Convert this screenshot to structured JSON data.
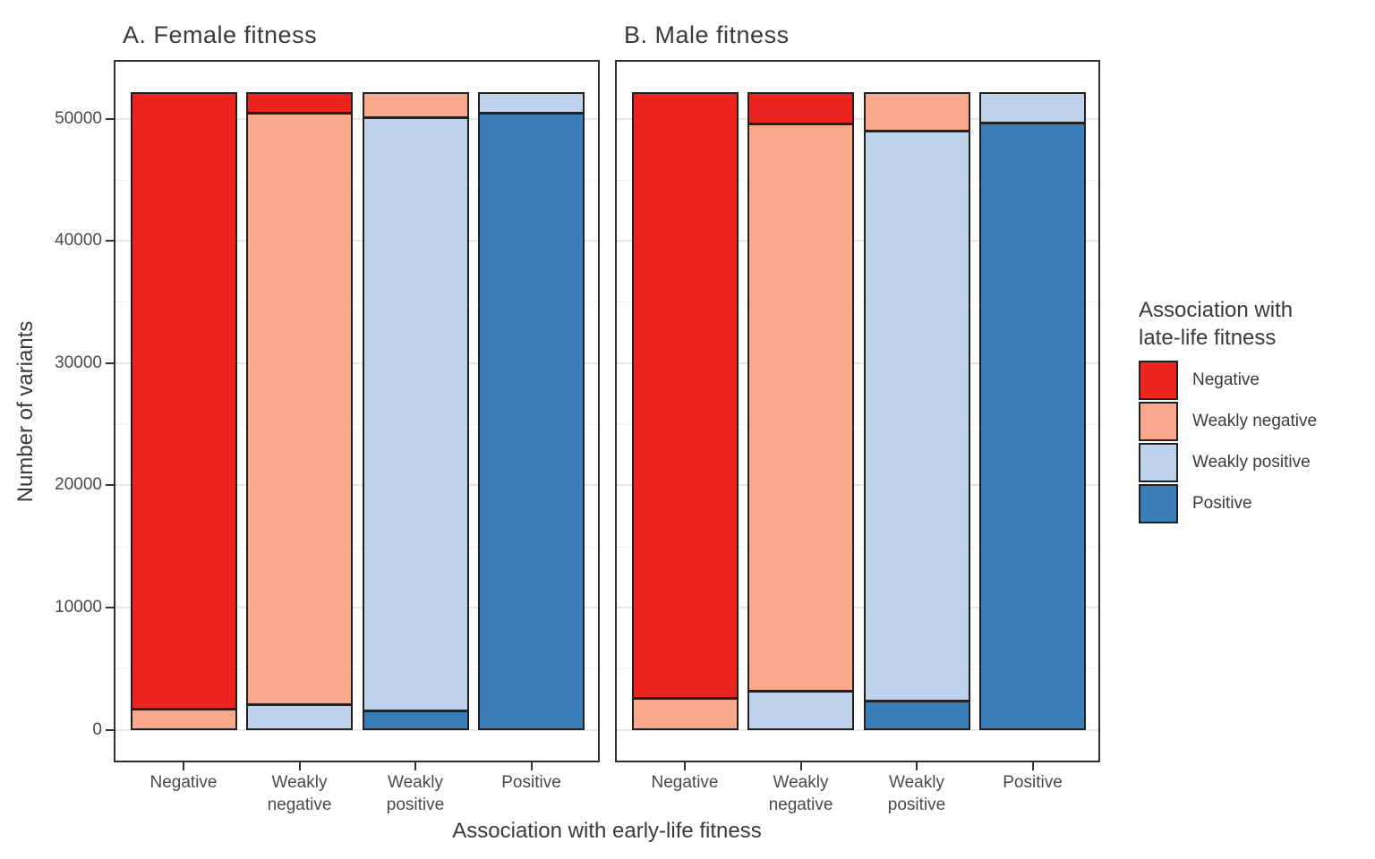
{
  "figure": {
    "y_axis_title": "Number of variants",
    "x_axis_title": "Association with early-life fitness"
  },
  "legend": {
    "title_line1": "Association with",
    "title_line2": "late-life fitness",
    "items": [
      {
        "label": "Negative",
        "color": "#EB2420"
      },
      {
        "label": "Weakly negative",
        "color": "#F9A98B"
      },
      {
        "label": "Weakly positive",
        "color": "#BED3EB"
      },
      {
        "label": "Positive",
        "color": "#3A7DB9"
      }
    ]
  },
  "colors": {
    "negative": "#EB2420",
    "weakly_negative": "#F9A98B",
    "weakly_positive": "#BED3EB",
    "positive": "#3A7DB9",
    "bar_outline": "#212121",
    "panel_border": "#2F2F2F",
    "grid_major": "#E7E7E7",
    "grid_minor": "#F2F2F2",
    "text": "#3A3A3A"
  },
  "chart_data": {
    "type": "bar",
    "stacked": true,
    "stack_order_top_to_bottom": [
      "Negative",
      "Weakly negative",
      "Weakly positive",
      "Positive"
    ],
    "categories": [
      "Negative",
      "Weakly negative",
      "Weakly positive",
      "Positive"
    ],
    "xlabel": "Association with early-life fitness",
    "ylabel": "Number of variants",
    "y_ticks": [
      0,
      10000,
      20000,
      30000,
      40000,
      50000
    ],
    "y_minor_ticks": [
      5000,
      15000,
      25000,
      35000,
      45000
    ],
    "ylim": [
      0,
      54800
    ],
    "bar_total": 52200,
    "grid": true,
    "legend_position": "right",
    "legend_title": "Association with late-life fitness",
    "panels": [
      {
        "title": "A. Female fitness",
        "series": [
          {
            "name": "Negative",
            "color": "#EB2420",
            "values": [
              50500,
              1700,
              0,
              0
            ]
          },
          {
            "name": "Weakly negative",
            "color": "#F9A98B",
            "values": [
              1700,
              48400,
              2100,
              0
            ]
          },
          {
            "name": "Weakly positive",
            "color": "#BED3EB",
            "values": [
              0,
              2100,
              48500,
              1700
            ]
          },
          {
            "name": "Positive",
            "color": "#3A7DB9",
            "values": [
              0,
              0,
              1600,
              50500
            ]
          }
        ]
      },
      {
        "title": "B. Male fitness",
        "series": [
          {
            "name": "Negative",
            "color": "#EB2420",
            "values": [
              49600,
              2600,
              0,
              0
            ]
          },
          {
            "name": "Weakly negative",
            "color": "#F9A98B",
            "values": [
              2600,
              46400,
              3200,
              0
            ]
          },
          {
            "name": "Weakly positive",
            "color": "#BED3EB",
            "values": [
              0,
              3200,
              46600,
              2500
            ]
          },
          {
            "name": "Positive",
            "color": "#3A7DB9",
            "values": [
              0,
              0,
              2400,
              49700
            ]
          }
        ]
      }
    ]
  }
}
